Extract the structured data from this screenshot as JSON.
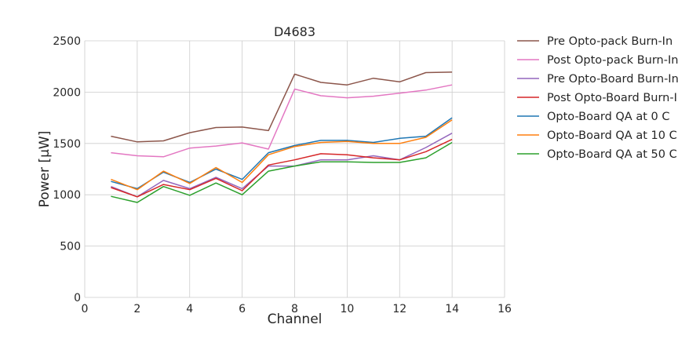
{
  "chart_data": {
    "type": "line",
    "title": "D4683",
    "xlabel": "Channel",
    "ylabel": "Power [μW]",
    "xlim": [
      0,
      16
    ],
    "ylim": [
      0,
      2500
    ],
    "xticks": [
      0,
      2,
      4,
      6,
      8,
      10,
      12,
      14,
      16
    ],
    "yticks": [
      0,
      500,
      1000,
      1500,
      2000,
      2500
    ],
    "grid": true,
    "legend_position": "outside-right",
    "x": [
      1,
      2,
      3,
      4,
      5,
      6,
      7,
      8,
      9,
      10,
      11,
      12,
      13,
      14
    ],
    "series": [
      {
        "name": "Pre Opto-pack Burn-In",
        "color": "#8c564b",
        "values": [
          1570,
          1515,
          1525,
          1605,
          1655,
          1660,
          1625,
          2175,
          2095,
          2070,
          2135,
          2100,
          2190,
          2195
        ]
      },
      {
        "name": "Post Opto-pack Burn-In",
        "color": "#e377c2",
        "values": [
          1410,
          1380,
          1370,
          1455,
          1475,
          1505,
          1445,
          2030,
          1965,
          1945,
          1960,
          1990,
          2020,
          2070
        ]
      },
      {
        "name": "Pre Opto-Board Burn-In",
        "color": "#9467bd",
        "values": [
          1080,
          980,
          1140,
          1060,
          1170,
          1060,
          1280,
          1280,
          1340,
          1340,
          1380,
          1340,
          1460,
          1600
        ]
      },
      {
        "name": "Post Opto-Board Burn-In",
        "color": "#d62728",
        "values": [
          1070,
          980,
          1100,
          1050,
          1160,
          1040,
          1290,
          1340,
          1400,
          1390,
          1360,
          1340,
          1420,
          1540
        ]
      },
      {
        "name": "Opto-Board QA at 0 C",
        "color": "#1f77b4",
        "values": [
          1130,
          1060,
          1220,
          1120,
          1250,
          1150,
          1410,
          1480,
          1530,
          1530,
          1510,
          1550,
          1570,
          1750
        ]
      },
      {
        "name": "Opto-Board QA at 10 C",
        "color": "#ff7f0e",
        "values": [
          1150,
          1050,
          1230,
          1110,
          1265,
          1120,
          1390,
          1470,
          1510,
          1520,
          1500,
          1500,
          1560,
          1730
        ]
      },
      {
        "name": "Opto-Board QA at 50 C",
        "color": "#2ca02c",
        "values": [
          985,
          925,
          1080,
          995,
          1115,
          1000,
          1230,
          1280,
          1320,
          1320,
          1315,
          1315,
          1360,
          1510
        ]
      }
    ]
  }
}
